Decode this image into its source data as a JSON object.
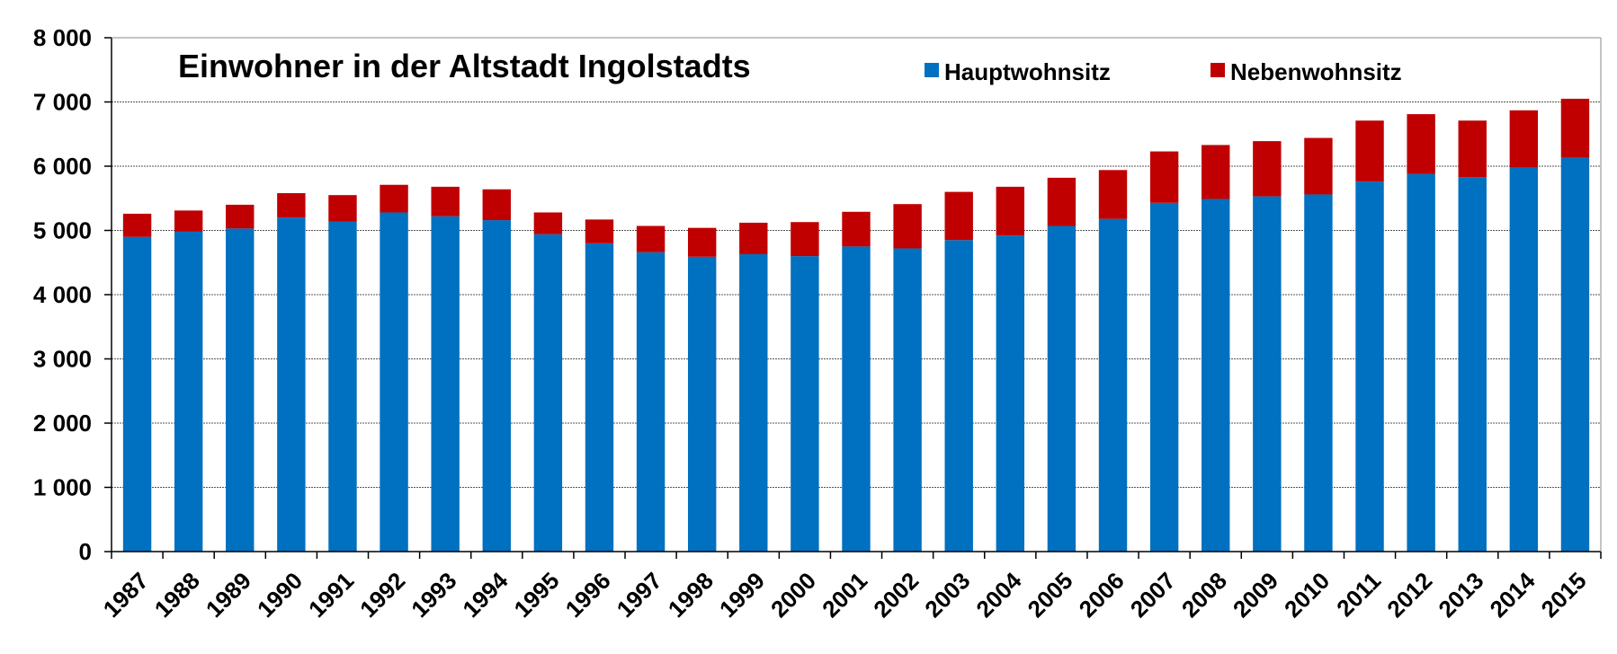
{
  "chart_data": {
    "type": "bar",
    "stacked": true,
    "title": "Einwohner in der Altstadt Ingolstadts",
    "categories": [
      "1987",
      "1988",
      "1989",
      "1990",
      "1991",
      "1992",
      "1993",
      "1994",
      "1995",
      "1996",
      "1997",
      "1998",
      "1999",
      "2000",
      "2001",
      "2002",
      "2003",
      "2004",
      "2005",
      "2006",
      "2007",
      "2008",
      "2009",
      "2010",
      "2011",
      "2012",
      "2013",
      "2014",
      "2015"
    ],
    "series": [
      {
        "name": "Hauptwohnsitz",
        "color": "#0070C0",
        "values": [
          4900,
          4980,
          5030,
          5200,
          5140,
          5280,
          5220,
          5160,
          4940,
          4800,
          4660,
          4590,
          4630,
          4600,
          4750,
          4720,
          4850,
          4920,
          5070,
          5180,
          5430,
          5490,
          5530,
          5560,
          5760,
          5880,
          5830,
          5980,
          6130
        ]
      },
      {
        "name": "Nebenwohnsitz",
        "color": "#C00000",
        "values": [
          360,
          330,
          370,
          380,
          410,
          430,
          460,
          480,
          340,
          370,
          410,
          450,
          490,
          530,
          540,
          690,
          750,
          760,
          750,
          760,
          800,
          840,
          860,
          880,
          950,
          930,
          880,
          890,
          920
        ]
      }
    ],
    "y_ticks": [
      "0",
      "1 000",
      "2 000",
      "3 000",
      "4 000",
      "5 000",
      "6 000",
      "7 000",
      "8 000"
    ],
    "ylim": [
      0,
      8000
    ],
    "grid": true,
    "legend_position": "top-right"
  }
}
